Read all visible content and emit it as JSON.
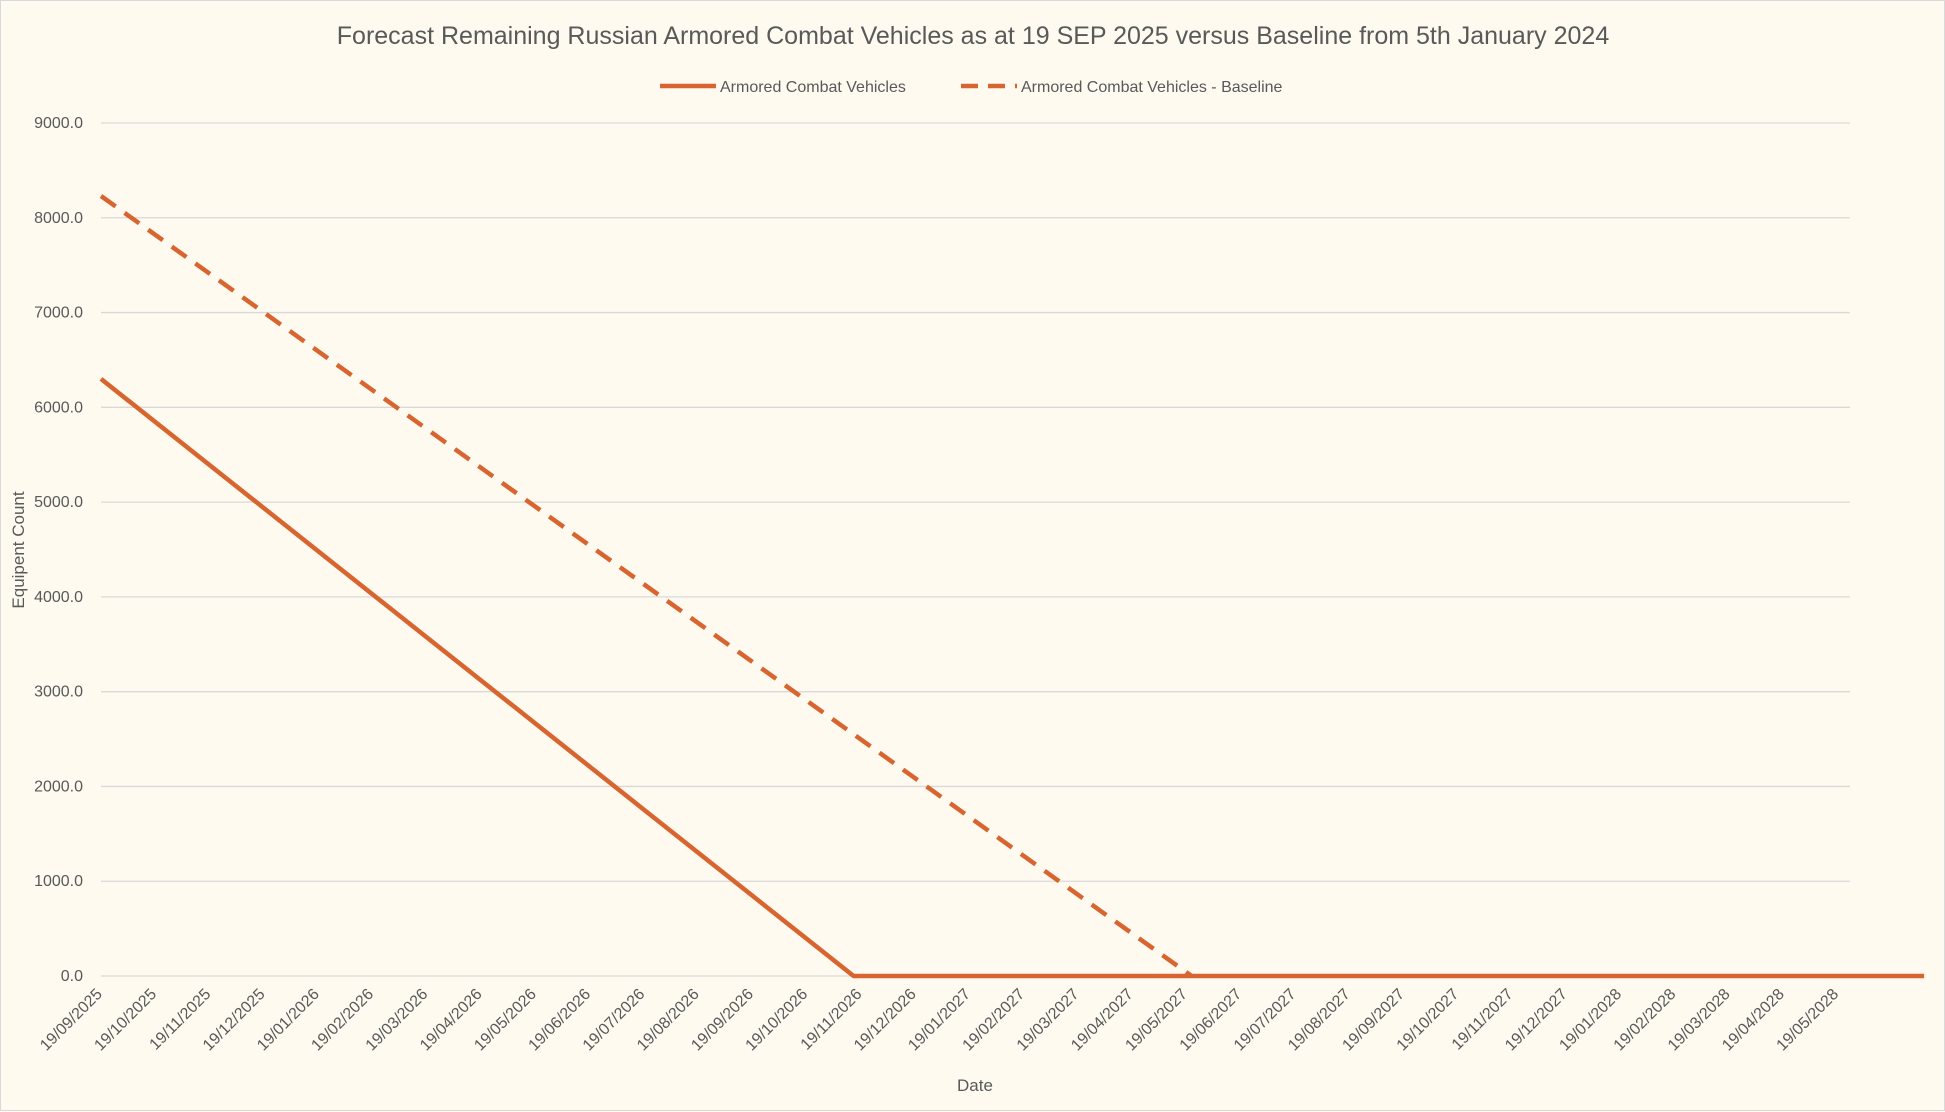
{
  "chart_data": {
    "type": "line",
    "title": "Forecast Remaining Russian Armored Combat Vehicles as at 19 SEP 2025 versus Baseline from 5th January 2024",
    "xlabel": "Date",
    "ylabel": "Equipent Count",
    "ylim": [
      0,
      9000
    ],
    "yticks": [
      "0.0",
      "1000.0",
      "2000.0",
      "3000.0",
      "4000.0",
      "5000.0",
      "6000.0",
      "7000.0",
      "8000.0",
      "9000.0"
    ],
    "categories": [
      "19/09/2025",
      "19/10/2025",
      "19/11/2025",
      "19/12/2025",
      "19/01/2026",
      "19/02/2026",
      "19/03/2026",
      "19/04/2026",
      "19/05/2026",
      "19/06/2026",
      "19/07/2026",
      "19/08/2026",
      "19/09/2026",
      "19/10/2026",
      "19/11/2026",
      "19/12/2026",
      "19/01/2027",
      "19/02/2027",
      "19/03/2027",
      "19/04/2027",
      "19/05/2027",
      "19/06/2027",
      "19/07/2027",
      "19/08/2027",
      "19/09/2027",
      "19/10/2027",
      "19/11/2027",
      "19/12/2027",
      "19/01/2028",
      "19/02/2028",
      "19/03/2028",
      "19/04/2028",
      "19/05/2028"
    ],
    "x_end_fraction": 33.6,
    "grid": true,
    "legend": "top-center",
    "series": [
      {
        "name": "Armored Combat Vehicles",
        "style": "solid",
        "color": "#d8652f",
        "points": [
          [
            0,
            6300
          ],
          [
            13.87,
            0
          ],
          [
            33.6,
            0
          ]
        ]
      },
      {
        "name": "Armored Combat Vehicles - Baseline",
        "style": "dashed",
        "color": "#d8652f",
        "points": [
          [
            0,
            8230
          ],
          [
            20.1,
            0
          ]
        ]
      }
    ]
  }
}
